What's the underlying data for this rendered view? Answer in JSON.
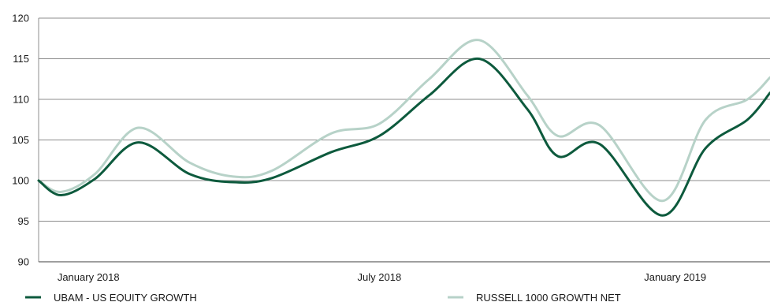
{
  "chart_data": {
    "type": "line",
    "ylim": [
      90,
      120
    ],
    "yticks": [
      90,
      95,
      100,
      105,
      110,
      115,
      120
    ],
    "xlim": [
      "2017-12-01",
      "2019-03-01"
    ],
    "xticks": [
      {
        "date": "2018-01-01",
        "label": "January 2018"
      },
      {
        "date": "2018-07-01",
        "label": "July 2018"
      },
      {
        "date": "2019-01-01",
        "label": "January 2019"
      }
    ],
    "grid": true,
    "legend_position": "bottom",
    "series": [
      {
        "name": "UBAM - US EQUITY GROWTH",
        "color": "#0d5a3d",
        "points": [
          [
            "2017-12-01",
            100.0
          ],
          [
            "2017-12-15",
            98.2
          ],
          [
            "2018-01-05",
            100.2
          ],
          [
            "2018-02-01",
            104.7
          ],
          [
            "2018-03-05",
            100.8
          ],
          [
            "2018-04-01",
            99.8
          ],
          [
            "2018-04-25",
            100.3
          ],
          [
            "2018-06-01",
            103.5
          ],
          [
            "2018-07-01",
            105.5
          ],
          [
            "2018-08-01",
            110.5
          ],
          [
            "2018-09-01",
            115.0
          ],
          [
            "2018-10-01",
            108.8
          ],
          [
            "2018-10-20",
            103.0
          ],
          [
            "2018-11-15",
            104.5
          ],
          [
            "2018-12-24",
            95.7
          ],
          [
            "2019-01-20",
            104.0
          ],
          [
            "2019-02-15",
            107.5
          ],
          [
            "2019-03-01",
            110.8
          ]
        ]
      },
      {
        "name": "RUSSELL 1000 GROWTH NET",
        "color": "#b7d2c8",
        "points": [
          [
            "2017-12-01",
            100.0
          ],
          [
            "2017-12-15",
            98.6
          ],
          [
            "2018-01-05",
            100.8
          ],
          [
            "2018-02-01",
            106.5
          ],
          [
            "2018-03-05",
            102.2
          ],
          [
            "2018-04-01",
            100.5
          ],
          [
            "2018-04-25",
            101.2
          ],
          [
            "2018-06-01",
            105.8
          ],
          [
            "2018-07-01",
            107.0
          ],
          [
            "2018-08-01",
            112.5
          ],
          [
            "2018-09-01",
            117.3
          ],
          [
            "2018-10-01",
            110.5
          ],
          [
            "2018-10-20",
            105.5
          ],
          [
            "2018-11-15",
            106.8
          ],
          [
            "2018-12-24",
            97.5
          ],
          [
            "2019-01-20",
            107.5
          ],
          [
            "2019-02-15",
            110.0
          ],
          [
            "2019-03-01",
            112.7
          ]
        ]
      }
    ]
  }
}
